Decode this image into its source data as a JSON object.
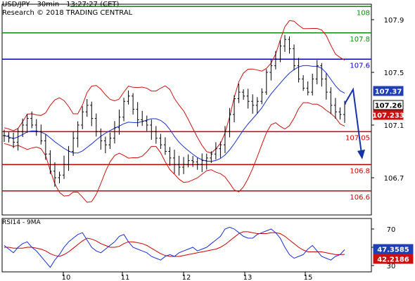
{
  "header": {
    "title": "USD/JPY - 30min - 13:27:27 (CET)",
    "subtitle": "Research © 2018 TRADING CENTRAL"
  },
  "rsi_title": "RSI14 - 9MA",
  "colors": {
    "resistance": "#118811",
    "pivot": "#0000cc",
    "support": "#cc0000",
    "bollinger": "#cc1111",
    "moving_average": "#1a2fd6",
    "arrow": "#1433a8"
  },
  "chart_data": [
    {
      "type": "line",
      "ylim": [
        106.5,
        107.98
      ],
      "y_ticks": [
        106.7,
        107.1,
        107.5,
        107.9
      ],
      "x_tick_labels": [
        "10",
        "11",
        "12",
        "13",
        "15"
      ],
      "levels": [
        {
          "label": "108",
          "value": 108.0,
          "kind": "resistance"
        },
        {
          "label": "107.8",
          "value": 107.8,
          "kind": "resistance"
        },
        {
          "label": "107.6",
          "value": 107.6,
          "kind": "pivot"
        },
        {
          "label": "107.05",
          "value": 107.05,
          "kind": "support"
        },
        {
          "label": "106.8",
          "value": 106.8,
          "kind": "support"
        },
        {
          "label": "106.6",
          "value": 106.6,
          "kind": "support"
        }
      ],
      "price_badges": [
        {
          "label": "107.37",
          "value": 107.37,
          "style": "blue"
        },
        {
          "label": "107.26",
          "value": 107.26,
          "style": "black"
        },
        {
          "label": "107.233",
          "value": 107.233,
          "style": "red"
        }
      ],
      "forecast_arrow": {
        "from": 107.37,
        "peak": 107.37,
        "to": 106.85
      },
      "close": [
        107.02,
        107.0,
        106.97,
        107.05,
        107.1,
        107.15,
        107.1,
        107.05,
        106.98,
        106.88,
        106.75,
        106.7,
        106.72,
        106.8,
        106.9,
        107.0,
        107.1,
        107.2,
        107.25,
        107.15,
        107.05,
        106.98,
        106.95,
        107.0,
        107.08,
        107.16,
        107.28,
        107.32,
        107.22,
        107.14,
        107.13,
        107.1,
        107.05,
        107.0,
        106.95,
        106.9,
        106.85,
        106.8,
        106.78,
        106.8,
        106.83,
        106.82,
        106.8,
        106.83,
        106.85,
        106.88,
        106.92,
        106.95,
        107.05,
        107.18,
        107.3,
        107.35,
        107.32,
        107.28,
        107.25,
        107.28,
        107.35,
        107.5,
        107.55,
        107.6,
        107.7,
        107.75,
        107.68,
        107.55,
        107.45,
        107.38,
        107.35,
        107.45,
        107.55,
        107.45,
        107.35,
        107.25,
        107.2,
        107.18,
        107.26
      ]
    },
    {
      "type": "line",
      "title": "RSI14 - 9MA",
      "ylim": [
        24,
        80
      ],
      "y_ticks": [
        30,
        50,
        70
      ],
      "badges": [
        {
          "label": "47.3585",
          "value": 47.3585,
          "style": "blue"
        },
        {
          "label": "42.2186",
          "value": 42.2186,
          "style": "red"
        }
      ],
      "rsi": [
        52,
        48,
        44,
        50,
        54,
        56,
        50,
        46,
        40,
        34,
        28,
        36,
        42,
        50,
        56,
        60,
        64,
        66,
        58,
        50,
        46,
        44,
        48,
        52,
        56,
        62,
        64,
        56,
        50,
        48,
        46,
        44,
        40,
        38,
        36,
        40,
        42,
        40,
        44,
        46,
        48,
        50,
        46,
        48,
        50,
        54,
        58,
        62,
        70,
        72,
        70,
        66,
        62,
        60,
        60,
        64,
        66,
        68,
        70,
        66,
        60,
        50,
        42,
        38,
        40,
        42,
        48,
        52,
        46,
        40,
        38,
        36,
        40,
        42,
        47.3585
      ],
      "ma": [
        50,
        50,
        49,
        49,
        49,
        50,
        50,
        49,
        48,
        46,
        43,
        41,
        40,
        42,
        45,
        49,
        53,
        57,
        60,
        59,
        57,
        54,
        52,
        50,
        50,
        51,
        54,
        56,
        56,
        55,
        54,
        52,
        49,
        46,
        43,
        41,
        40,
        40,
        40,
        41,
        42,
        43,
        44,
        45,
        46,
        47,
        48,
        50,
        53,
        57,
        61,
        65,
        67,
        67,
        66,
        65,
        65,
        65,
        66,
        66,
        65,
        62,
        58,
        54,
        50,
        47,
        45,
        45,
        45,
        45,
        44,
        43,
        42,
        42,
        42.2186
      ]
    }
  ]
}
